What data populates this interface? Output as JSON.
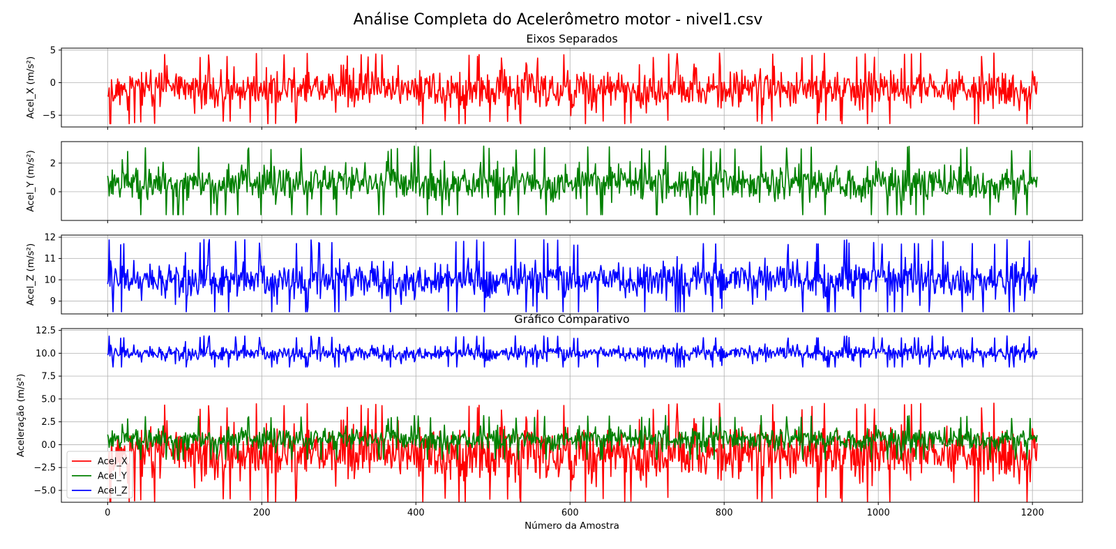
{
  "figure": {
    "suptitle": "Análise Completa do Acelerômetro motor - nivel1.csv"
  },
  "chart_data": [
    {
      "type": "line",
      "title": "Eixos Separados",
      "xlabel": "",
      "ylabel": "Acel_X (m/s²)",
      "xlim": [
        -60,
        1265
      ],
      "ylim": [
        -6.8,
        5.3
      ],
      "yticks": [
        -5,
        0,
        5
      ],
      "xticks": [
        0,
        200,
        400,
        600,
        800,
        1000,
        1200
      ],
      "grid": true,
      "series": [
        {
          "name": "Acel_X",
          "color": "#ff0000",
          "n": 1207,
          "mean": -1.0,
          "min": -6.3,
          "max": 4.6
        }
      ]
    },
    {
      "type": "line",
      "title": "",
      "xlabel": "",
      "ylabel": "Acel_Y (m/s²)",
      "xlim": [
        -60,
        1265
      ],
      "ylim": [
        -2.0,
        3.5
      ],
      "yticks": [
        0,
        2
      ],
      "xticks": [
        0,
        200,
        400,
        600,
        800,
        1000,
        1200
      ],
      "grid": true,
      "series": [
        {
          "name": "Acel_Y",
          "color": "#008000",
          "n": 1207,
          "mean": 0.6,
          "min": -1.6,
          "max": 3.2
        }
      ]
    },
    {
      "type": "line",
      "title": "",
      "xlabel": "",
      "ylabel": "Acel_Z (m/s²)",
      "xlim": [
        -60,
        1265
      ],
      "ylim": [
        8.4,
        12.1
      ],
      "yticks": [
        9,
        10,
        11,
        12
      ],
      "xticks": [
        0,
        200,
        400,
        600,
        800,
        1000,
        1200
      ],
      "grid": true,
      "series": [
        {
          "name": "Acel_Z",
          "color": "#0000ff",
          "n": 1207,
          "mean": 10.0,
          "min": 8.5,
          "max": 11.9
        }
      ]
    },
    {
      "type": "line",
      "title": "Gráfico Comparativo",
      "xlabel": "Número da Amostra",
      "ylabel": "Aceleração (m/s²)",
      "xlim": [
        -60,
        1265
      ],
      "ylim": [
        -6.3,
        12.7
      ],
      "yticks": [
        -5.0,
        -2.5,
        0.0,
        2.5,
        5.0,
        7.5,
        10.0,
        12.5
      ],
      "xticks": [
        0,
        200,
        400,
        600,
        800,
        1000,
        1200
      ],
      "grid": true,
      "legend": "lower-left",
      "series": [
        {
          "name": "Acel_X",
          "color": "#ff0000"
        },
        {
          "name": "Acel_Y",
          "color": "#008000"
        },
        {
          "name": "Acel_Z",
          "color": "#0000ff"
        }
      ]
    }
  ]
}
